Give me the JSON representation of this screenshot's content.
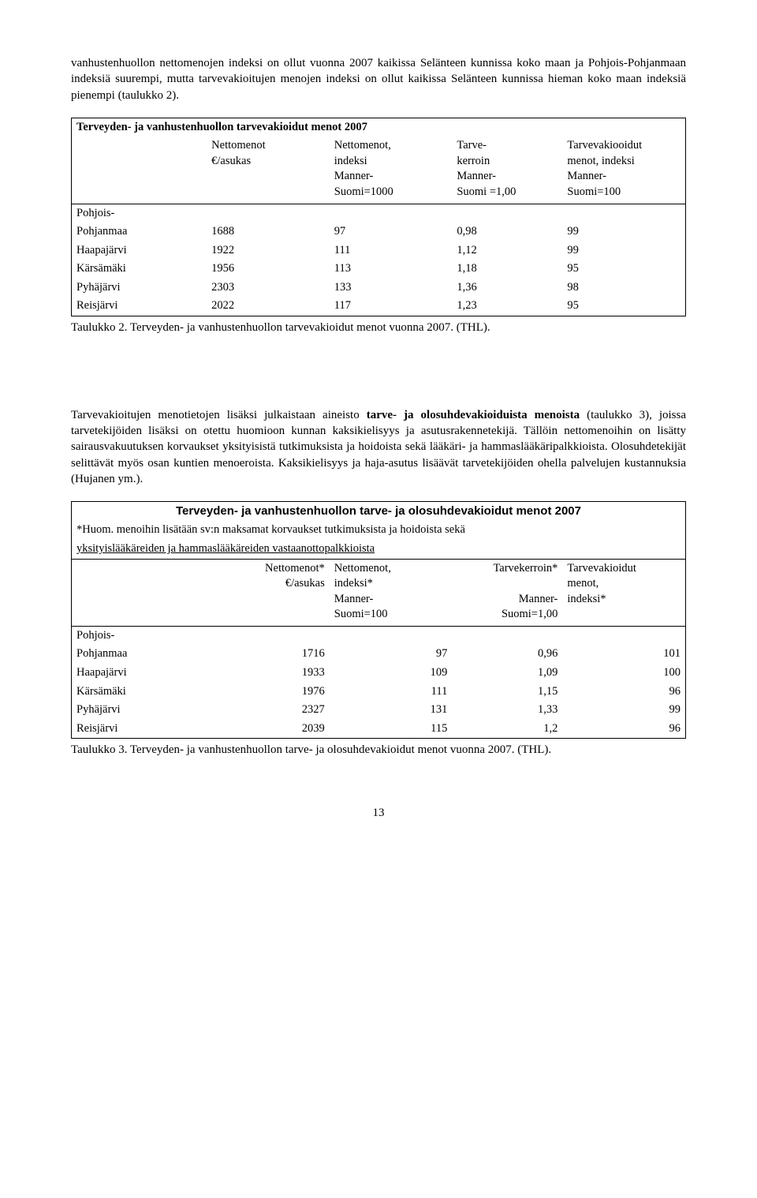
{
  "intro_paragraph": "vanhustenhuollon nettomenojen indeksi on ollut vuonna 2007 kaikissa Selänteen kunnissa koko maan ja Pohjois-Pohjanmaan indeksiä suurempi, mutta tarvevakioitujen menojen indeksi on ollut kaikissa Selänteen kunnissa hieman koko maan indeksiä pienempi (taulukko 2).",
  "table1": {
    "title": "Terveyden- ja vanhustenhuollon tarvevakioidut menot 2007",
    "headers": {
      "h1": "",
      "h2a": "Nettomenot",
      "h2b": "€/asukas",
      "h3a": "Nettomenot,",
      "h3b": "indeksi",
      "h3c": "Manner-",
      "h3d": "Suomi=1000",
      "h4a": "Tarve-",
      "h4b": "kerroin",
      "h4c": "Manner-",
      "h4d": "Suomi =1,00",
      "h5a": "Tarvevakiooidut",
      "h5b": "menot, indeksi",
      "h5c": "Manner-",
      "h5d": "Suomi=100"
    },
    "rows": [
      {
        "label_a": "Pohjois-",
        "label_b": "Pohjanmaa",
        "c2": "1688",
        "c3": "97",
        "c4": "0,98",
        "c5": "99"
      },
      {
        "label": "Haapajärvi",
        "c2": "1922",
        "c3": "111",
        "c4": "1,12",
        "c5": "99"
      },
      {
        "label": "Kärsämäki",
        "c2": "1956",
        "c3": "113",
        "c4": "1,18",
        "c5": "95"
      },
      {
        "label": "Pyhäjärvi",
        "c2": "2303",
        "c3": "133",
        "c4": "1,36",
        "c5": "98"
      },
      {
        "label": "Reisjärvi",
        "c2": "2022",
        "c3": "117",
        "c4": "1,23",
        "c5": "95"
      }
    ],
    "caption": "Taulukko 2. Terveyden- ja vanhustenhuollon tarvevakioidut menot vuonna 2007. (THL)."
  },
  "mid_paragraph_pieces": {
    "a": "Tarvevakioitujen menotietojen lisäksi julkaistaan aineisto ",
    "b": "tarve- ja olosuhdevakioiduista menoista",
    "c": " (taulukko 3), joissa tarvetekijöiden lisäksi on otettu huomioon kunnan kaksikielisyys ja asutusrakennetekijä. Tällöin nettomenoihin on lisätty sairausvakuutuksen korvaukset yksityisistä tutkimuksista ja hoidoista sekä lääkäri- ja hammaslääkäripalkkioista. Olosuhdetekijät selittävät myös osan kuntien menoeroista. Kaksikielisyys ja haja-asutus lisäävät tarvetekijöiden ohella palvelujen kustannuksia (Hujanen ym.)."
  },
  "table2": {
    "title": "Terveyden- ja vanhustenhuollon tarve- ja olosuhdevakioidut menot 2007",
    "note_a": "*Huom. menoihin lisätään sv:n maksamat korvaukset tutkimuksista ja hoidoista sekä",
    "note_b": "yksityislääkäreiden ja hammaslääkäreiden vastaanottopalkkioista",
    "headers": {
      "h2a": "Nettomenot*",
      "h2b": "€/asukas",
      "h3a": "Nettomenot,",
      "h3b": "indeksi*",
      "h3c": "Manner-",
      "h3d": "Suomi=100",
      "h4a": "Tarvekerroin*",
      "h4c": "Manner-",
      "h4d": "Suomi=1,00",
      "h5a": "Tarvevakioidut",
      "h5b": "menot,",
      "h5c": "indeksi*"
    },
    "rows": [
      {
        "label_a": "Pohjois-",
        "label_b": "Pohjanmaa",
        "c2": "1716",
        "c3": "97",
        "c4": "0,96",
        "c5": "101"
      },
      {
        "label": "Haapajärvi",
        "c2": "1933",
        "c3": "109",
        "c4": "1,09",
        "c5": "100"
      },
      {
        "label": "Kärsämäki",
        "c2": "1976",
        "c3": "111",
        "c4": "1,15",
        "c5": "96"
      },
      {
        "label": "Pyhäjärvi",
        "c2": "2327",
        "c3": "131",
        "c4": "1,33",
        "c5": "99"
      },
      {
        "label": "Reisjärvi",
        "c2": "2039",
        "c3": "115",
        "c4": "1,2",
        "c5": "96"
      }
    ],
    "caption": "Taulukko 3. Terveyden- ja vanhustenhuollon tarve- ja olosuhdevakioidut menot vuonna 2007. (THL)."
  },
  "page_number": "13"
}
